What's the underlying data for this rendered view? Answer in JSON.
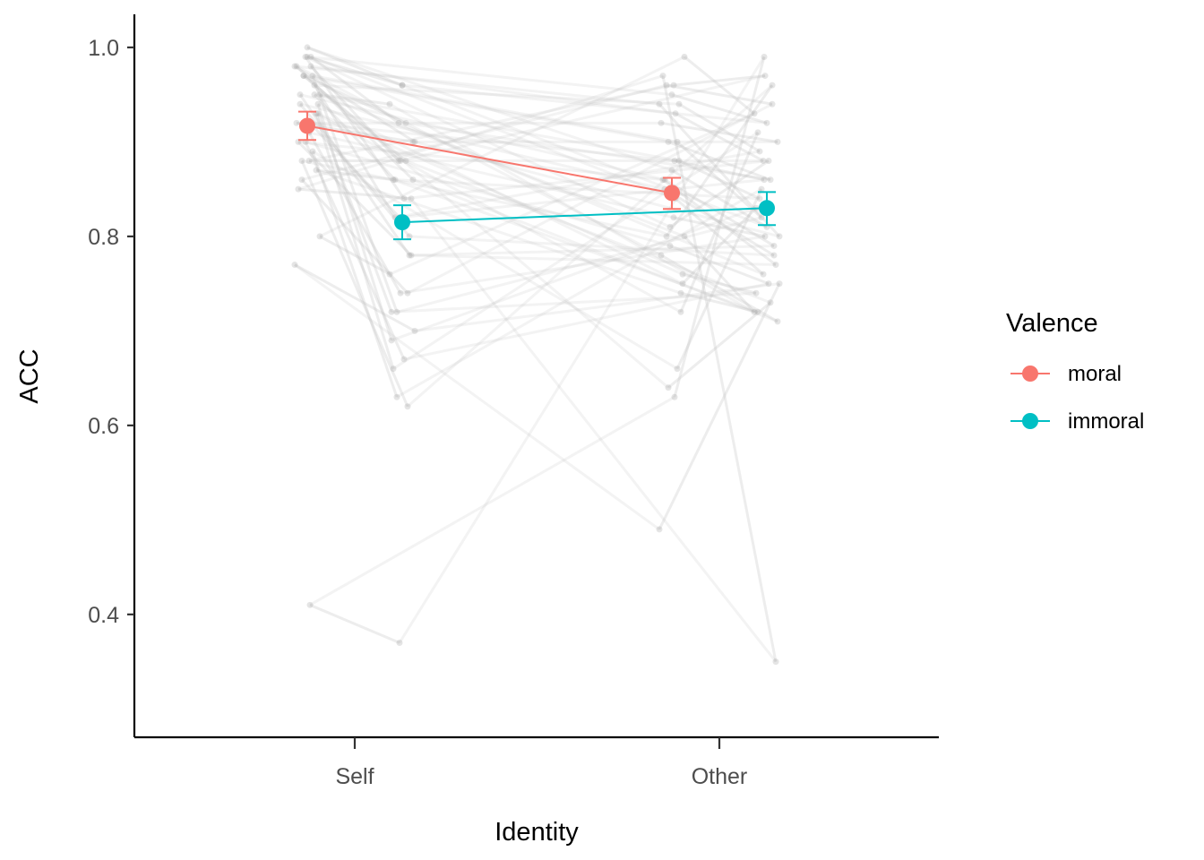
{
  "chart_data": {
    "type": "line",
    "xlabel": "Identity",
    "ylabel": "ACC",
    "categories": [
      "Self",
      "Other"
    ],
    "ylim": [
      0.27,
      1.035
    ],
    "yticks": [
      "0.4",
      "0.6",
      "0.8",
      "1.0"
    ],
    "grid": false,
    "legend": {
      "title": "Valence",
      "placement": "right"
    },
    "series": [
      {
        "name": "moral",
        "color": "#F8766D",
        "values": [
          0.917,
          0.846
        ],
        "error_low": [
          0.902,
          0.829
        ],
        "error_high": [
          0.932,
          0.862
        ]
      },
      {
        "name": "immoral",
        "color": "#00BFC4",
        "values": [
          0.815,
          0.83
        ],
        "error_low": [
          0.797,
          0.812
        ],
        "error_high": [
          0.833,
          0.847
        ]
      }
    ],
    "participants": {
      "color": "#BEBEBE",
      "series_order": [
        "Self moral",
        "Self immoral",
        "Other moral",
        "Other immoral"
      ],
      "values": [
        [
          0.99,
          0.96,
          0.95,
          0.92
        ],
        [
          0.98,
          0.88,
          0.93,
          0.88
        ],
        [
          0.97,
          0.92,
          0.9,
          0.86
        ],
        [
          0.95,
          0.86,
          0.88,
          0.84
        ],
        [
          0.94,
          0.8,
          0.85,
          0.78
        ],
        [
          0.93,
          0.72,
          0.76,
          0.74
        ],
        [
          0.92,
          0.9,
          0.92,
          0.9
        ],
        [
          0.91,
          0.74,
          0.82,
          0.8
        ],
        [
          0.9,
          0.67,
          0.79,
          0.75
        ],
        [
          0.89,
          0.63,
          0.66,
          0.85
        ],
        [
          0.88,
          0.62,
          0.8,
          0.96
        ],
        [
          0.87,
          0.86,
          0.74,
          0.72
        ],
        [
          0.85,
          0.84,
          0.97,
          0.35
        ],
        [
          0.8,
          0.76,
          0.99,
          0.93
        ],
        [
          0.77,
          0.7,
          0.49,
          0.75
        ],
        [
          0.41,
          0.37,
          0.63,
          0.99
        ],
        [
          1.0,
          0.96,
          0.87,
          0.81
        ],
        [
          0.99,
          0.92,
          0.84,
          0.76
        ],
        [
          0.97,
          0.88,
          0.64,
          0.73
        ],
        [
          0.96,
          0.82,
          0.94,
          0.89
        ],
        [
          0.95,
          0.78,
          0.86,
          0.79
        ],
        [
          0.94,
          0.69,
          0.75,
          0.83
        ],
        [
          0.98,
          0.86,
          0.78,
          0.71
        ],
        [
          0.88,
          0.88,
          0.96,
          0.97
        ],
        [
          0.99,
          0.84,
          0.81,
          0.88
        ],
        [
          0.97,
          0.72,
          0.9,
          0.82
        ],
        [
          0.86,
          0.74,
          0.96,
          0.94
        ],
        [
          0.93,
          0.66,
          0.72,
          0.91
        ],
        [
          0.9,
          0.78,
          0.86,
          0.77
        ],
        [
          0.95,
          0.94,
          0.8,
          0.72
        ],
        [
          0.98,
          0.9,
          0.94,
          0.8
        ],
        [
          0.92,
          0.82,
          0.88,
          0.86
        ]
      ]
    }
  }
}
